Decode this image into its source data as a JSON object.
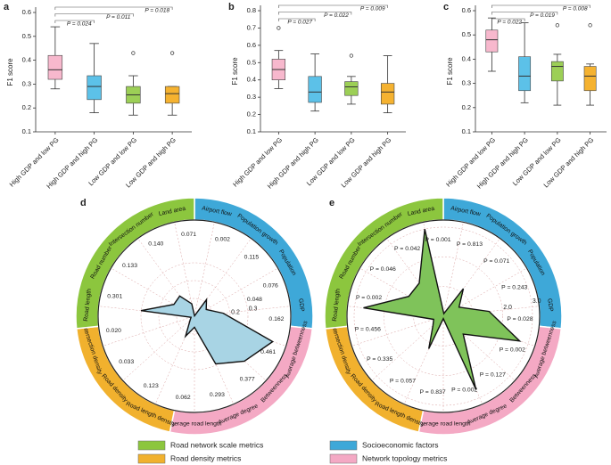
{
  "chart_data": [
    {
      "type": "box",
      "label": "a",
      "y_label": "F1 score",
      "categories": [
        "High GDP and low PG",
        "High GDP and high PG",
        "Low GDP and low PG",
        "Low GDP and high PG"
      ],
      "ylim": [
        0.1,
        0.6
      ],
      "yticks": [
        0.1,
        0.2,
        0.3,
        0.4,
        0.5,
        0.6
      ],
      "boxes": [
        {
          "color": "#f7b8cd",
          "min": 0.28,
          "q1": 0.32,
          "median": 0.36,
          "q3": 0.42,
          "max": 0.54,
          "outliers": []
        },
        {
          "color": "#5cc1e8",
          "min": 0.18,
          "q1": 0.235,
          "median": 0.29,
          "q3": 0.335,
          "max": 0.47,
          "outliers": []
        },
        {
          "color": "#9ccf56",
          "min": 0.17,
          "q1": 0.22,
          "median": 0.255,
          "q3": 0.29,
          "max": 0.335,
          "outliers": [
            0.43
          ]
        },
        {
          "color": "#f5b230",
          "min": 0.17,
          "q1": 0.22,
          "median": 0.26,
          "q3": 0.29,
          "max": 0.29,
          "outliers": [
            0.43
          ]
        }
      ],
      "brackets": [
        "P = 0.024",
        "P = 0.011",
        "P = 0.018"
      ]
    },
    {
      "type": "box",
      "label": "b",
      "y_label": "F1 score",
      "categories": [
        "High GDP and low PG",
        "High GDP and high PG",
        "Low GDP and low PG",
        "Low GDP and high PG"
      ],
      "ylim": [
        0.1,
        0.8
      ],
      "yticks": [
        0.1,
        0.2,
        0.3,
        0.4,
        0.5,
        0.6,
        0.7,
        0.8
      ],
      "boxes": [
        {
          "color": "#f7b8cd",
          "min": 0.35,
          "q1": 0.4,
          "median": 0.46,
          "q3": 0.52,
          "max": 0.57,
          "outliers": [
            0.7
          ]
        },
        {
          "color": "#5cc1e8",
          "min": 0.22,
          "q1": 0.27,
          "median": 0.33,
          "q3": 0.42,
          "max": 0.55,
          "outliers": []
        },
        {
          "color": "#9ccf56",
          "min": 0.26,
          "q1": 0.31,
          "median": 0.36,
          "q3": 0.39,
          "max": 0.42,
          "outliers": [
            0.54
          ]
        },
        {
          "color": "#f5b230",
          "min": 0.21,
          "q1": 0.26,
          "median": 0.33,
          "q3": 0.38,
          "max": 0.54,
          "outliers": []
        }
      ],
      "brackets": [
        "P = 0.027",
        "P = 0.022",
        "P = 0.009"
      ]
    },
    {
      "type": "box",
      "label": "c",
      "y_label": "F1 score",
      "categories": [
        "High GDP and low PG",
        "High GDP and high PG",
        "Low GDP and low PG",
        "Low GDP and high PG"
      ],
      "ylim": [
        0.1,
        0.6
      ],
      "yticks": [
        0.1,
        0.2,
        0.3,
        0.4,
        0.5,
        0.6
      ],
      "boxes": [
        {
          "color": "#f7b8cd",
          "min": 0.35,
          "q1": 0.43,
          "median": 0.48,
          "q3": 0.52,
          "max": 0.57,
          "outliers": []
        },
        {
          "color": "#5cc1e8",
          "min": 0.22,
          "q1": 0.27,
          "median": 0.33,
          "q3": 0.41,
          "max": 0.55,
          "outliers": []
        },
        {
          "color": "#9ccf56",
          "min": 0.21,
          "q1": 0.31,
          "median": 0.37,
          "q3": 0.39,
          "max": 0.42,
          "outliers": [
            0.54
          ]
        },
        {
          "color": "#f5b230",
          "min": 0.21,
          "q1": 0.27,
          "median": 0.33,
          "q3": 0.37,
          "max": 0.38,
          "outliers": [
            0.54
          ]
        }
      ],
      "brackets": [
        "P = 0.022",
        "P = 0.019",
        "P = 0.008"
      ]
    },
    {
      "type": "radar",
      "label": "d",
      "color": "#a8d4e4",
      "rlim": [
        0,
        0.5
      ],
      "rticks": [
        0,
        0.1,
        0.2,
        0.3
      ],
      "groups": [
        {
          "name": "Socioeconomic factors",
          "color": "#3ea8d8",
          "categories": [
            "Airport flow",
            "Population growth",
            "Population",
            "GDP"
          ]
        },
        {
          "name": "Network topology metrics",
          "color": "#f4a9c4",
          "categories": [
            "Average betweenness",
            "Betweenness",
            "Average degree",
            "Average road length"
          ]
        },
        {
          "name": "Road density metrics",
          "color": "#f1b12e",
          "categories": [
            "Road length density",
            "Road density",
            "Intersection density"
          ]
        },
        {
          "name": "Road network scale metrics",
          "color": "#8cc63e",
          "categories": [
            "Road length",
            "Road number",
            "Intersection number",
            "Land area"
          ]
        }
      ],
      "values": [
        0.002,
        0.115,
        0.076,
        0.162,
        0.461,
        0.377,
        0.293,
        0.062,
        0.123,
        0.033,
        0.02,
        0.301,
        0.133,
        0.14,
        0.071
      ],
      "value_labels": [
        "0.002",
        "0.115",
        "0.076",
        "0.162",
        "0.461",
        "0.377",
        "0.293",
        "0.062",
        "0.123",
        "0.033",
        "0.020",
        "0.301",
        "0.133",
        "0.140",
        "0.071"
      ],
      "annotations": [
        "0.048"
      ]
    },
    {
      "type": "radar",
      "label": "e",
      "color": "#7fc35a",
      "rlim": [
        0,
        3
      ],
      "rticks": [
        0,
        {
          "value": 1,
          "label": "1.0"
        },
        {
          "value": 2,
          "label": "2.0"
        },
        {
          "value": 3,
          "label": "3.0"
        }
      ],
      "groups": [
        {
          "name": "Socioeconomic factors",
          "color": "#3ea8d8",
          "categories": [
            "Airport flow",
            "Population growth",
            "Population",
            "GDP"
          ]
        },
        {
          "name": "Network topology metrics",
          "color": "#f4a9c4",
          "categories": [
            "Average betweenness",
            "Betweenness",
            "Average degree",
            "Average road length"
          ]
        },
        {
          "name": "Road density metrics",
          "color": "#f1b12e",
          "categories": [
            "Road length density",
            "Road density",
            "Intersection density"
          ]
        },
        {
          "name": "Road network scale metrics",
          "color": "#8cc63e",
          "categories": [
            "Road length",
            "Road number",
            "Intersection number",
            "Land area"
          ]
        }
      ],
      "values": [
        0.09,
        1.15,
        0.61,
        1.55,
        2.7,
        0.9,
        2.7,
        0.08,
        1.2,
        0.47,
        0.34,
        2.7,
        1.34,
        1.38,
        3.0
      ],
      "p_labels": [
        "P = 0.813",
        "P = 0.071",
        "P = 0.243",
        "P = 0.028",
        "P = 0.002",
        "P = 0.127",
        "P = 0.002",
        "P = 0.837",
        "P = 0.057",
        "P = 0.335",
        "P = 0.456",
        "P = 0.002",
        "P = 0.046",
        "P = 0.042",
        "P = 0.001"
      ]
    }
  ]
}
